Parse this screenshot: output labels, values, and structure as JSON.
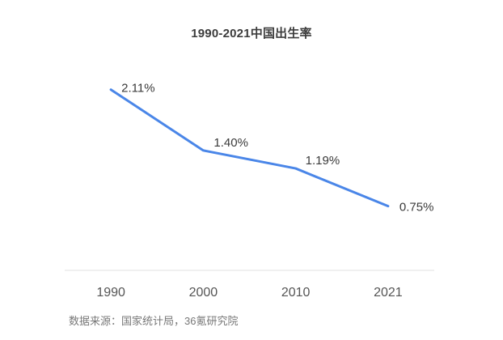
{
  "chart_data": {
    "type": "line",
    "title": "1990-2021中国出生率",
    "categories": [
      "1990",
      "2000",
      "2010",
      "2021"
    ],
    "values": [
      2.11,
      1.4,
      1.19,
      0.75
    ],
    "point_labels": [
      "2.11%",
      "1.40%",
      "1.19%",
      "0.75%"
    ],
    "xlabel": "",
    "ylabel": "",
    "ylim": [
      0,
      2.4
    ],
    "grid": false,
    "legend": "none",
    "line_color": "#4a86e8",
    "axis_color": "#e2e2e2",
    "label_color": "#3a3a3a",
    "tick_color": "#555555"
  },
  "footer": {
    "source": "数据来源：国家统计局，36氪研究院"
  }
}
